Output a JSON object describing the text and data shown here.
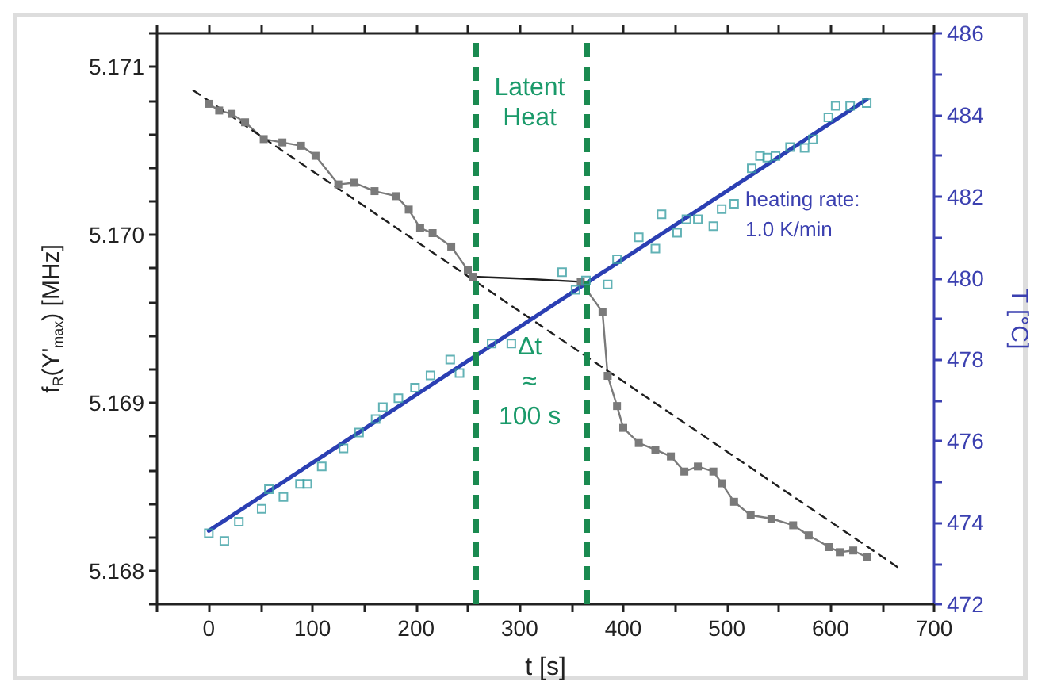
{
  "chart_data": {
    "type": "line",
    "xlabel": "t [s]",
    "ylabel": "f$_{R}$(Y'$_{max}$) [MHz]",
    "y2label": "T [°C]",
    "xlim": [
      -50,
      700
    ],
    "xticks": [
      {
        "value": -50,
        "label": null
      },
      0,
      {
        "value": 50,
        "label": null
      },
      100,
      {
        "value": 150,
        "label": null
      },
      200,
      {
        "value": 250,
        "label": null
      },
      300,
      {
        "value": 350,
        "label": null
      },
      400,
      {
        "value": 450,
        "label": null
      },
      500,
      {
        "value": 550,
        "label": null
      },
      600,
      {
        "value": 650,
        "label": null
      },
      700
    ],
    "ylim": [
      5.1678,
      5.1712
    ],
    "yticks": [
      {
        "value": 5.1678,
        "label": null
      },
      5.168,
      {
        "value": 5.1682,
        "label": null
      },
      {
        "value": 5.1684,
        "label": null
      },
      {
        "value": 5.1686,
        "label": null
      },
      {
        "value": 5.1688,
        "label": null
      },
      5.169,
      {
        "value": 5.1692,
        "label": null
      },
      {
        "value": 5.1694,
        "label": null
      },
      {
        "value": 5.1696,
        "label": null
      },
      {
        "value": 5.1698,
        "label": null
      },
      {
        "value": 5.17,
        "label": "5.170"
      },
      {
        "value": 5.1702,
        "label": null
      },
      {
        "value": 5.1704,
        "label": null
      },
      {
        "value": 5.1706,
        "label": null
      },
      {
        "value": 5.1708,
        "label": null
      },
      5.171,
      {
        "value": 5.1712,
        "label": null
      }
    ],
    "y2lim": [
      472,
      486
    ],
    "y2ticks": [
      472,
      {
        "value": 473,
        "label": null
      },
      474,
      {
        "value": 475,
        "label": null
      },
      476,
      {
        "value": 477,
        "label": null
      },
      478,
      {
        "value": 479,
        "label": null
      },
      480,
      {
        "value": 481,
        "label": null
      },
      482,
      {
        "value": 483,
        "label": null
      },
      484,
      {
        "value": 485,
        "label": null
      },
      486
    ],
    "grid": false,
    "series": [
      {
        "color": "#7a7a7a",
        "marker": "square",
        "line_style": "solid",
        "x": [
          0,
          10,
          22,
          35,
          53,
          71,
          89,
          103,
          125,
          140,
          160,
          181,
          193,
          204,
          216,
          234,
          250,
          255
        ],
        "values": [
          5.17078,
          5.17074,
          5.17072,
          5.17067,
          5.17057,
          5.17055,
          5.17053,
          5.17047,
          5.1703,
          5.17031,
          5.17026,
          5.17023,
          5.17015,
          5.17004,
          5.17001,
          5.16993,
          5.16979,
          5.16975
        ]
      },
      {
        "color": "#1e1e1e",
        "marker": "none",
        "line_style": "solid",
        "x": [
          255,
          300,
          359
        ],
        "values": [
          5.16975,
          5.16974,
          5.16972
        ]
      },
      {
        "color": "#7a7a7a",
        "marker": "square",
        "line_style": "solid",
        "x": [
          359,
          380,
          385,
          394,
          400,
          415,
          431,
          446,
          459,
          472,
          487,
          495,
          507,
          523,
          543,
          564,
          579,
          599,
          609,
          622,
          635
        ],
        "values": [
          5.16972,
          5.16954,
          5.16916,
          5.16898,
          5.16885,
          5.16876,
          5.16872,
          5.16868,
          5.16859,
          5.16862,
          5.16859,
          5.16852,
          5.16841,
          5.16833,
          5.16831,
          5.16827,
          5.16821,
          5.16814,
          5.16811,
          5.16812,
          5.16808
        ]
      },
      {
        "color": "#1e1e1e",
        "marker": "none",
        "line_style": "dashed",
        "x": [
          -15,
          665
        ],
        "values": [
          5.17086,
          5.16802
        ]
      },
      {
        "type": "scatter",
        "axis": "y2",
        "color": "#3a9fa3",
        "marker": "square",
        "x": [
          0,
          15,
          29,
          51,
          58,
          72,
          88,
          95,
          109,
          130,
          145,
          161,
          168,
          183,
          199,
          214,
          233,
          242,
          273,
          292,
          341,
          354,
          364,
          385,
          394,
          415,
          431,
          437,
          452,
          461,
          472,
          487,
          495,
          507,
          524,
          532,
          539,
          547,
          561,
          575,
          583,
          598,
          605,
          619,
          635
        ],
        "values": [
          473.74,
          473.55,
          474.02,
          474.34,
          474.82,
          474.63,
          474.95,
          474.95,
          475.38,
          475.82,
          476.21,
          476.54,
          476.83,
          477.05,
          477.31,
          477.61,
          478.0,
          477.67,
          478.39,
          478.39,
          480.14,
          479.71,
          479.94,
          479.84,
          480.46,
          481.0,
          480.72,
          481.56,
          481.11,
          481.44,
          481.44,
          481.27,
          481.69,
          481.82,
          482.69,
          482.99,
          482.95,
          482.99,
          483.21,
          483.19,
          483.4,
          483.94,
          484.22,
          484.22,
          484.29
        ]
      },
      {
        "axis": "y2",
        "color": "#2b3fb3",
        "marker": "none",
        "line_style": "solid",
        "x": [
          0,
          635
        ],
        "values": [
          473.8,
          484.38
        ]
      }
    ],
    "ref_lines": [
      {
        "axis": "x",
        "value": 257,
        "color": "#1a8a50",
        "line_style": "dashed"
      },
      {
        "axis": "x",
        "value": 364,
        "color": "#1a8a50",
        "line_style": "dashed"
      }
    ],
    "annotations": [
      "Latent Heat",
      "Δt ≈ 100 s",
      "heating rate: 1.0 K/min"
    ]
  }
}
